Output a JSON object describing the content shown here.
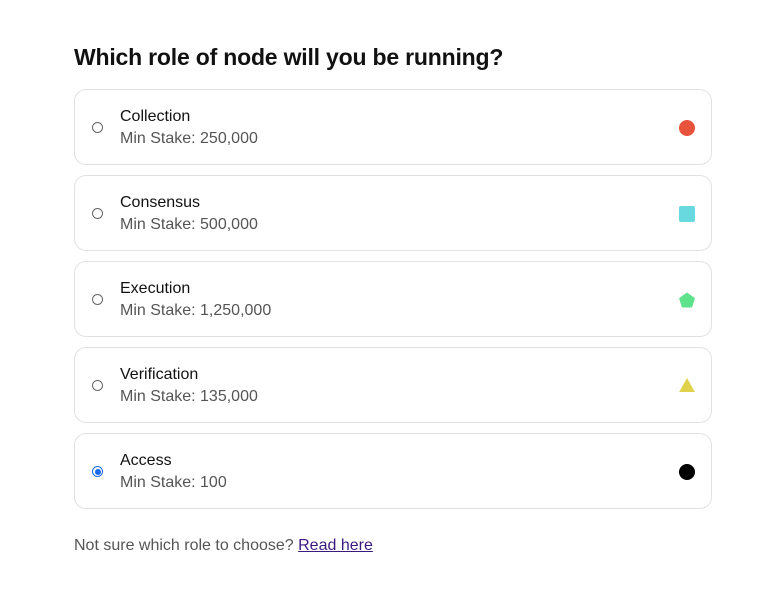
{
  "title": "Which role of node will you be running?",
  "options": [
    {
      "name": "Collection",
      "stake": "Min Stake: 250,000",
      "shape": "circle",
      "color": "#e8533b",
      "selected": false
    },
    {
      "name": "Consensus",
      "stake": "Min Stake: 500,000",
      "shape": "square",
      "color": "#68d9de",
      "selected": false
    },
    {
      "name": "Execution",
      "stake": "Min Stake: 1,250,000",
      "shape": "pentagon",
      "color": "#5ee38c",
      "selected": false
    },
    {
      "name": "Verification",
      "stake": "Min Stake: 135,000",
      "shape": "triangle",
      "color": "#e0d24a",
      "selected": false
    },
    {
      "name": "Access",
      "stake": "Min Stake: 100",
      "shape": "circle",
      "color": "#000000",
      "selected": true
    }
  ],
  "footer": {
    "text": "Not sure which role to choose? ",
    "link": "Read here"
  }
}
